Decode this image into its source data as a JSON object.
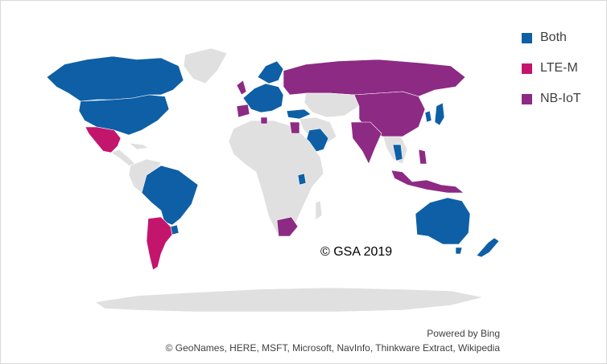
{
  "legend": {
    "items": [
      {
        "label": "Both",
        "color": "#0e5fa6"
      },
      {
        "label": "LTE-M",
        "color": "#c4156c"
      },
      {
        "label": "NB-IoT",
        "color": "#8c2a84"
      }
    ]
  },
  "watermark": "© GSA 2019",
  "credits": {
    "powered_by": "Powered by Bing",
    "sources": "© GeoNames, HERE, MSFT, Microsoft, NavInfo, Thinkware Extract, Wikipedia"
  },
  "colors": {
    "land": "#e0e0e0",
    "both": "#0e5fa6",
    "ltem": "#c4156c",
    "nbiot": "#8c2a84"
  }
}
